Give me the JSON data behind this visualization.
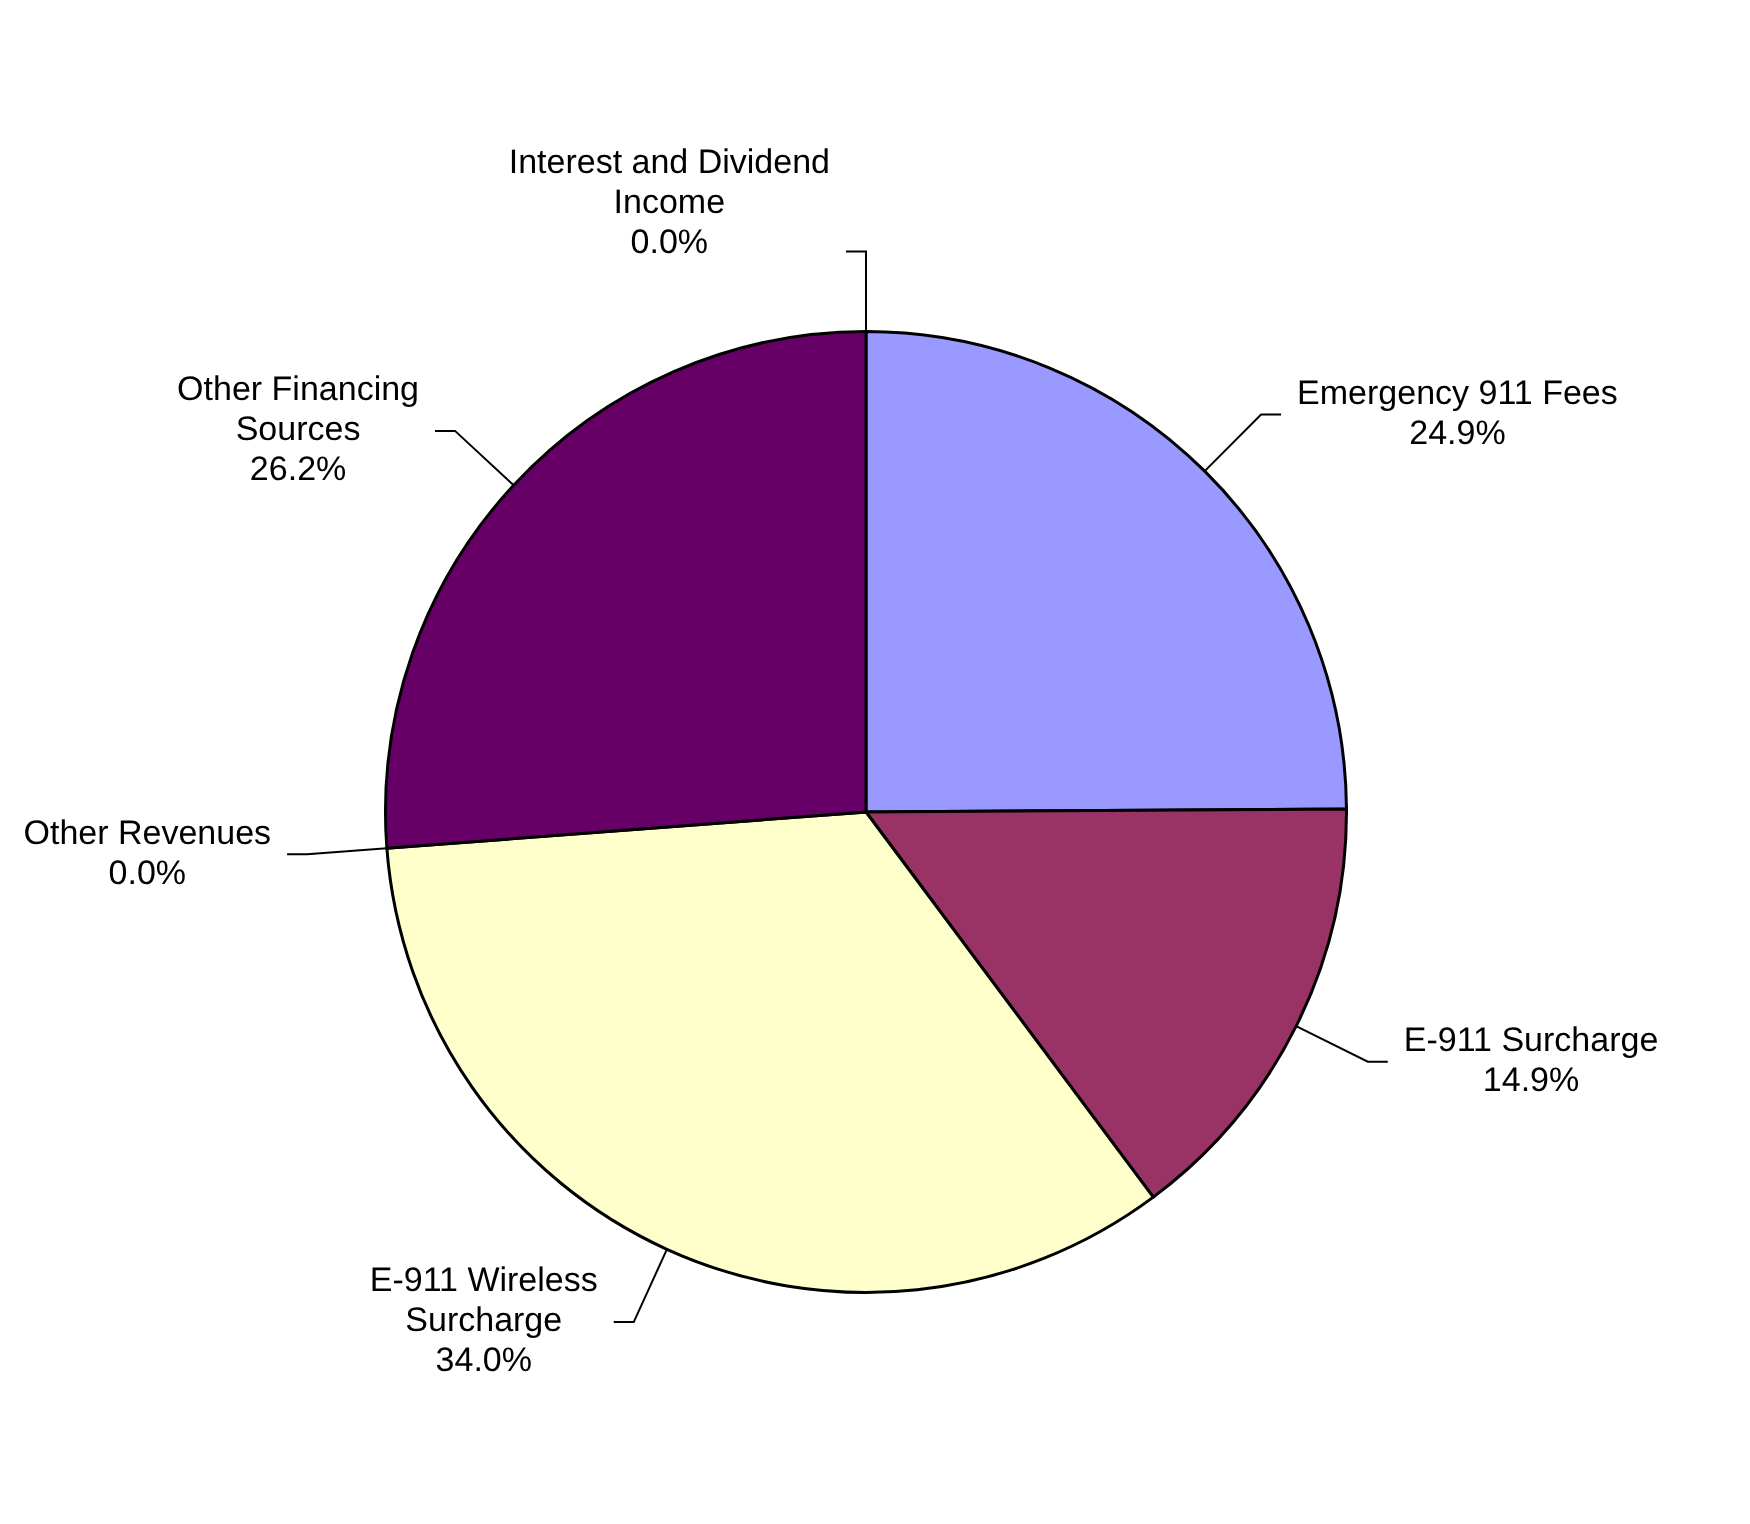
{
  "chart_data": {
    "type": "pie",
    "categories": [
      "Emergency 911 Fees",
      "E-911 Surcharge",
      "E-911 Wireless Surcharge",
      "Other Revenues",
      "Other Financing Sources",
      "Interest and Dividend Income"
    ],
    "values": [
      24.9,
      14.9,
      34.0,
      0.0,
      26.2,
      0.0
    ],
    "value_labels": [
      "24.9%",
      "14.9%",
      "34.0%",
      "0.0%",
      "26.2%",
      "0.0%"
    ],
    "colors": [
      "#9999ff",
      "#993366",
      "#ffffcc",
      "#ccffff",
      "#660066",
      "#ff8080"
    ]
  }
}
